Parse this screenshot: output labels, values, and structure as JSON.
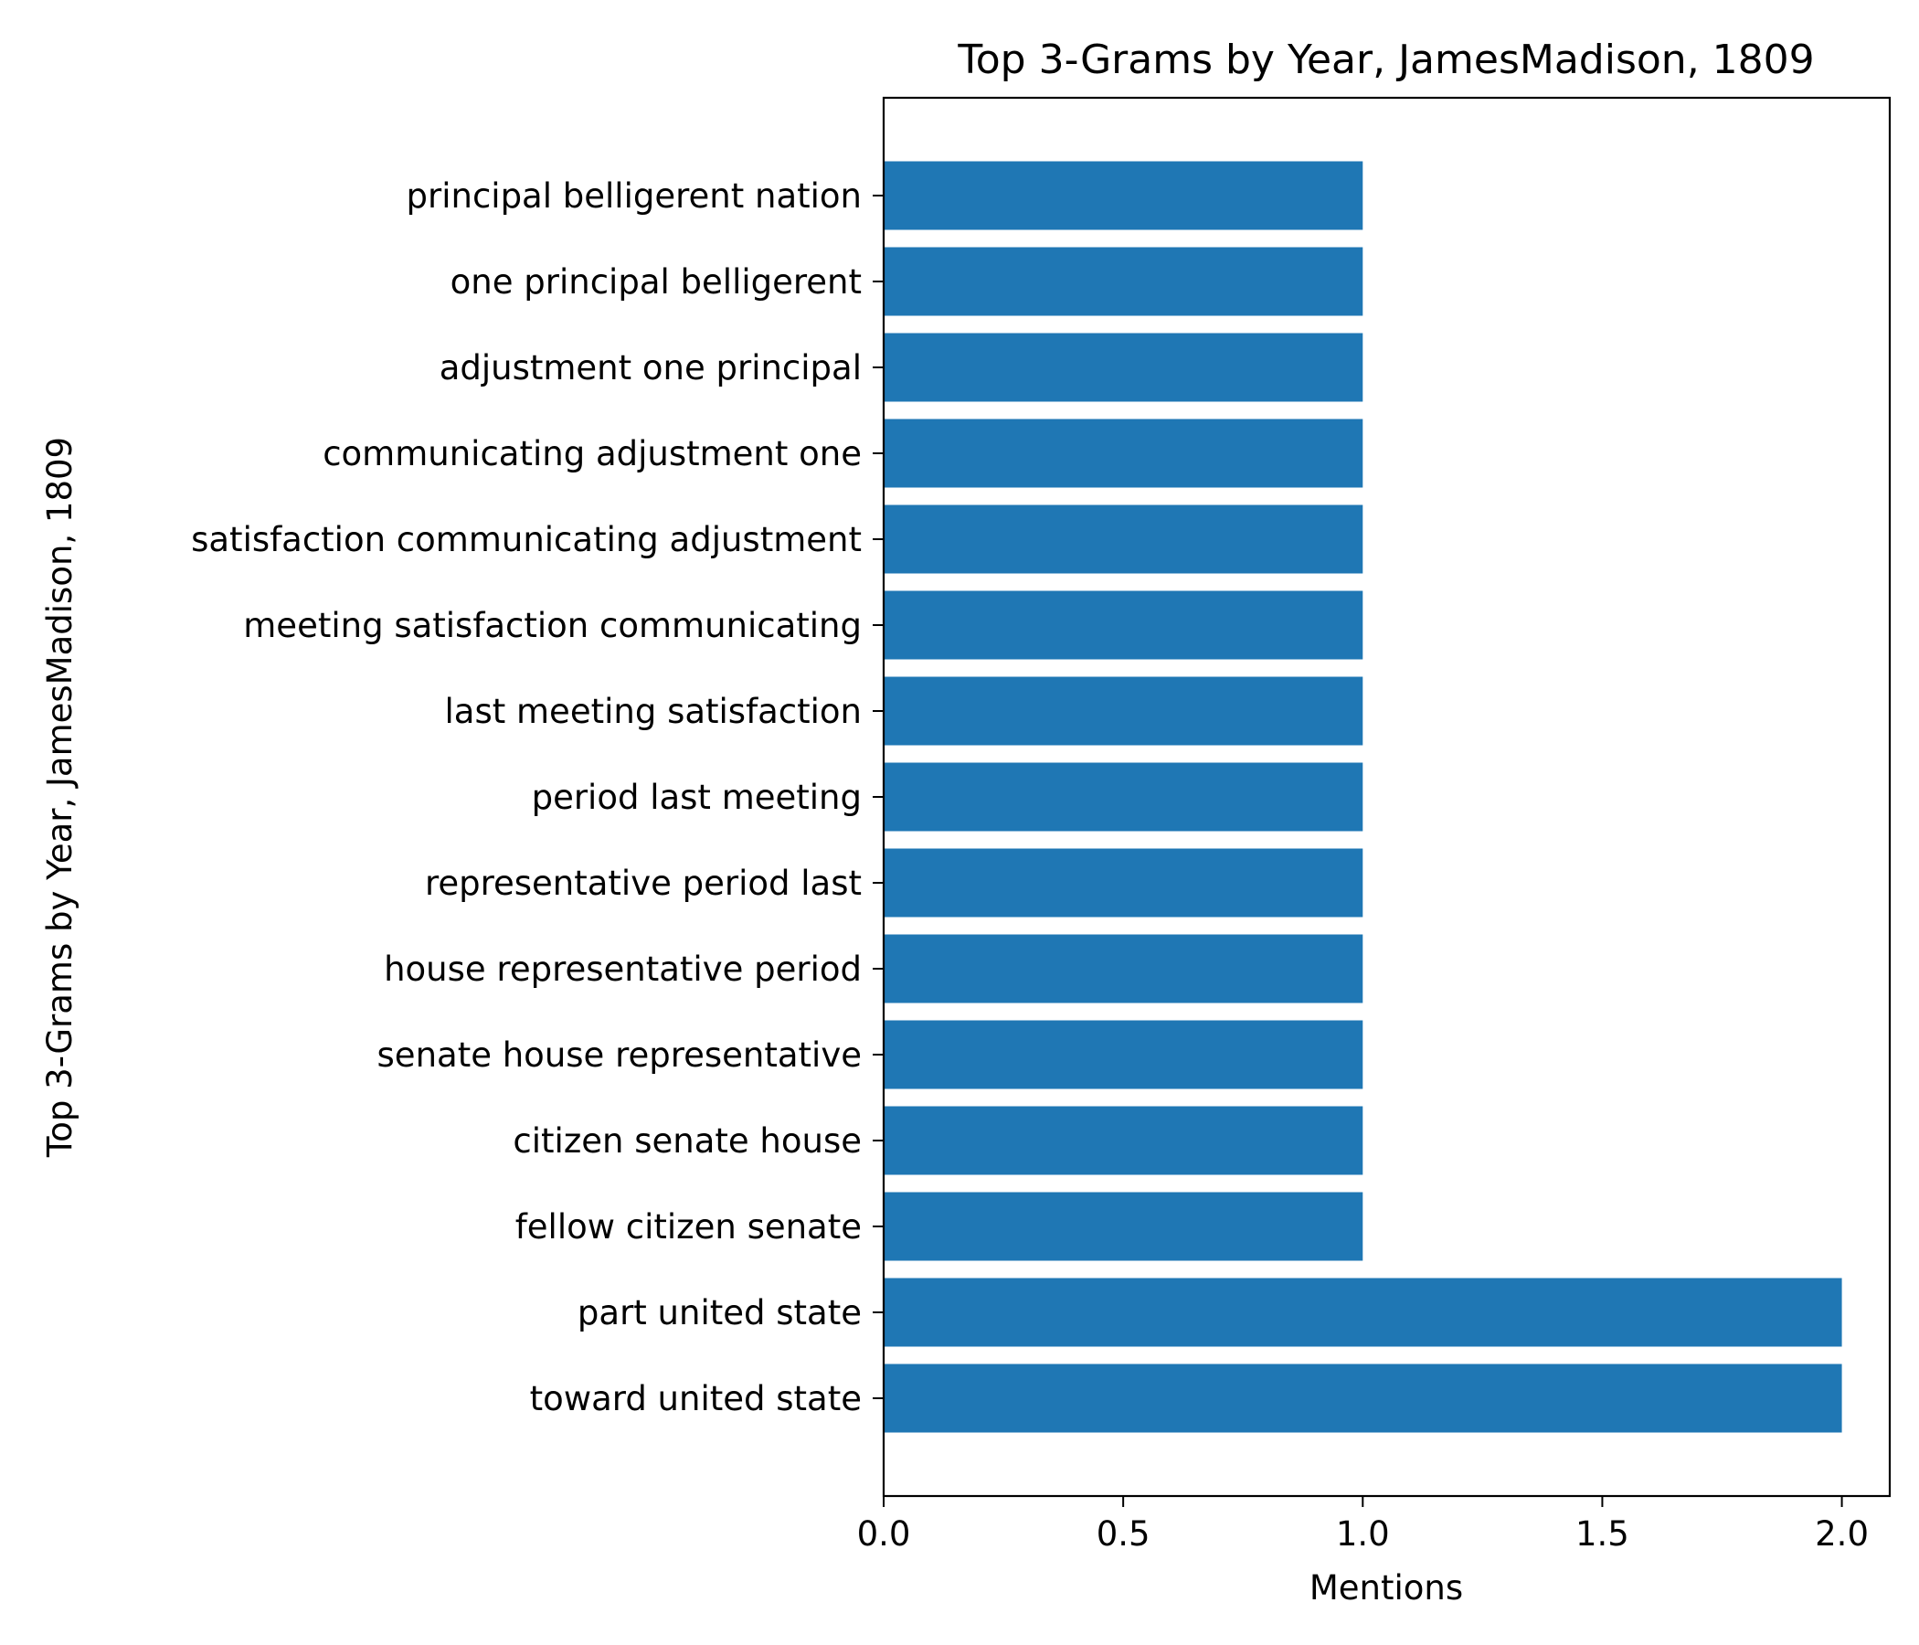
{
  "chart_data": {
    "type": "bar",
    "orientation": "horizontal",
    "title": "Top 3-Grams by Year, JamesMadison, 1809",
    "xlabel": "Mentions",
    "ylabel": "Top 3-Grams by Year, JamesMadison, 1809",
    "xlim": [
      0,
      2.1
    ],
    "xticks": [
      0.0,
      0.5,
      1.0,
      1.5,
      2.0
    ],
    "xtick_labels": [
      "0.0",
      "0.5",
      "1.0",
      "1.5",
      "2.0"
    ],
    "categories": [
      "principal belligerent nation",
      "one principal belligerent",
      "adjustment one principal",
      "communicating adjustment one",
      "satisfaction communicating adjustment",
      "meeting satisfaction communicating",
      "last meeting satisfaction",
      "period last meeting",
      "representative period last",
      "house representative period",
      "senate house representative",
      "citizen senate house",
      "fellow citizen senate",
      "part united state",
      "toward united state"
    ],
    "values": [
      1,
      1,
      1,
      1,
      1,
      1,
      1,
      1,
      1,
      1,
      1,
      1,
      1,
      2,
      2
    ],
    "bar_color": "#1f77b4",
    "grid": false,
    "legend": "none"
  }
}
